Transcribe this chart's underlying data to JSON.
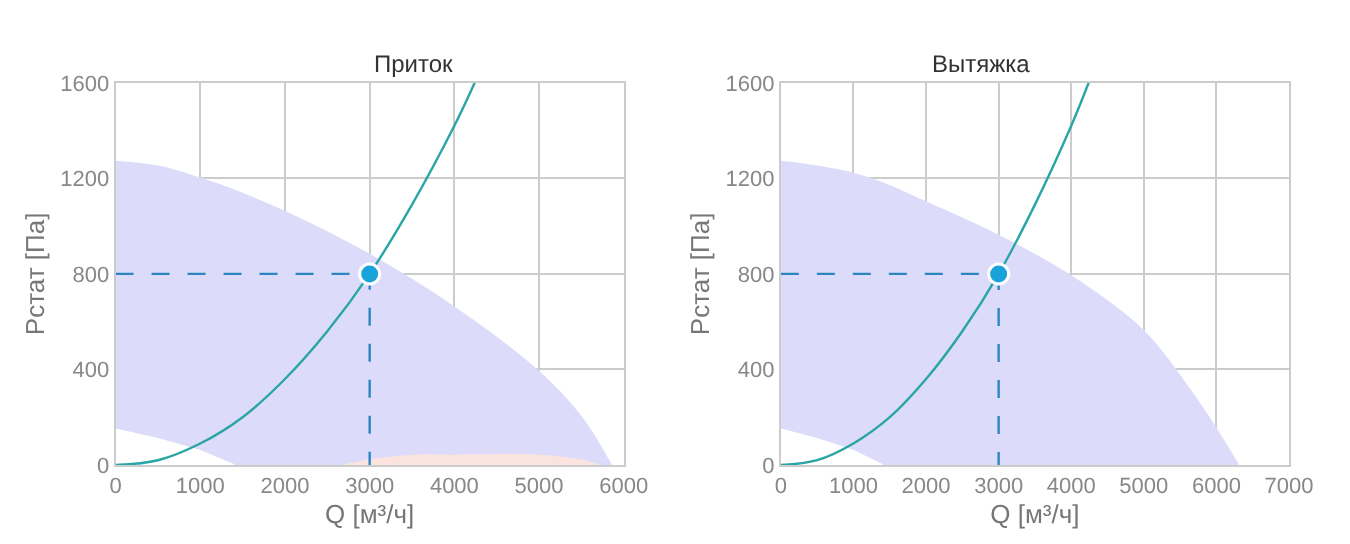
{
  "chart_data": [
    {
      "type": "line",
      "title": "Приток",
      "xlabel": "Q [м³/ч]",
      "ylabel": "Pстат [Па]",
      "xlim": [
        0,
        6000
      ],
      "xticks": [
        0,
        1000,
        2000,
        3000,
        4000,
        5000,
        6000
      ],
      "ylim": [
        0,
        1600
      ],
      "yticks": [
        0,
        400,
        800,
        1200,
        1600
      ],
      "grid": true,
      "series": [
        {
          "type": "area",
          "color": "#dcdcfa",
          "x": [
            0,
            500,
            1000,
            1400,
            2000,
            3000,
            4000,
            5000,
            5500,
            5850
          ],
          "values": [
            1270,
            1250,
            1200,
            1150,
            1060,
            880,
            660,
            390,
            200,
            0
          ]
        },
        {
          "type": "area",
          "color": "#ffffff",
          "x": [
            0,
            500,
            1000,
            1400
          ],
          "values": [
            150,
            110,
            60,
            0
          ]
        },
        {
          "type": "area",
          "color": "#fbe3e0",
          "x": [
            2700,
            3000,
            3500,
            4000,
            5000,
            5500,
            5700
          ],
          "values": [
            0,
            20,
            40,
            40,
            40,
            20,
            0
          ]
        },
        {
          "color": "#2aa5a5",
          "x": [
            0,
            500,
            1000,
            1500,
            2000,
            2500,
            3000,
            3500,
            4000,
            4240
          ],
          "values": [
            0,
            20,
            90,
            200,
            360,
            560,
            800,
            1090,
            1420,
            1600
          ]
        },
        {
          "color": "#2e86c1",
          "line_style": "dashed",
          "x": [
            0,
            3000,
            3000
          ],
          "values": [
            800,
            800,
            0
          ]
        },
        {
          "type": "scatter",
          "color": "#1aa3d9",
          "marker": "circle",
          "x": [
            3000
          ],
          "values": [
            800
          ]
        }
      ]
    },
    {
      "type": "line",
      "title": "Вытяжка",
      "xlabel": "Q [м³/ч]",
      "ylabel": "Pстат [Па]",
      "xlim": [
        0,
        7000
      ],
      "xticks": [
        0,
        1000,
        2000,
        3000,
        4000,
        5000,
        6000,
        7000
      ],
      "ylim": [
        0,
        1600
      ],
      "yticks": [
        0,
        400,
        800,
        1200,
        1600
      ],
      "grid": true,
      "series": [
        {
          "type": "area",
          "color": "#dcdcfa",
          "x": [
            0,
            500,
            1000,
            1400,
            2000,
            3000,
            4000,
            5000,
            5600,
            6000,
            6300
          ],
          "values": [
            1270,
            1250,
            1220,
            1180,
            1100,
            960,
            790,
            560,
            330,
            150,
            0
          ]
        },
        {
          "type": "area",
          "color": "#ffffff",
          "x": [
            0,
            500,
            1000,
            1400
          ],
          "values": [
            150,
            110,
            60,
            0
          ]
        },
        {
          "color": "#2aa5a5",
          "x": [
            0,
            500,
            1000,
            1500,
            2000,
            2500,
            3000,
            3500,
            4000,
            4240
          ],
          "values": [
            0,
            20,
            90,
            200,
            360,
            560,
            800,
            1090,
            1420,
            1600
          ]
        },
        {
          "color": "#2e86c1",
          "line_style": "dashed",
          "x": [
            0,
            3000,
            3000
          ],
          "values": [
            800,
            800,
            0
          ]
        },
        {
          "type": "scatter",
          "color": "#1aa3d9",
          "marker": "circle",
          "x": [
            3000
          ],
          "values": [
            800
          ]
        }
      ]
    }
  ]
}
